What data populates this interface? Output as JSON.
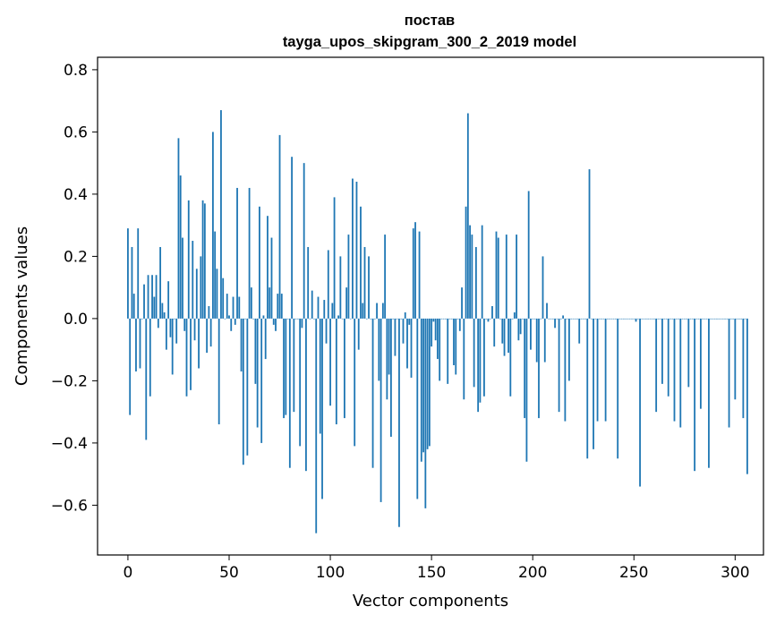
{
  "chart_data": {
    "type": "bar",
    "title_line1": "постав",
    "title_line2": "tayga_upos_skipgram_300_2_2019 model",
    "xlabel": "Vector components",
    "ylabel": "Components values",
    "xlim": [
      -15,
      314
    ],
    "ylim": [
      -0.76,
      0.84
    ],
    "xticks": [
      0,
      50,
      100,
      150,
      200,
      250,
      300
    ],
    "yticks": [
      -0.6,
      -0.4,
      -0.2,
      0.0,
      0.2,
      0.4,
      0.6,
      0.8
    ],
    "ytick_labels": [
      "−0.6",
      "−0.4",
      "−0.2",
      "0.0",
      "0.2",
      "0.4",
      "0.6",
      "0.8"
    ],
    "bar_color": "#1f77b4",
    "values": [
      0.29,
      -0.31,
      0.23,
      0.08,
      -0.17,
      0.29,
      -0.16,
      0.0,
      0.11,
      -0.39,
      0.14,
      -0.25,
      0.14,
      0.07,
      0.14,
      -0.03,
      0.23,
      0.05,
      0.02,
      -0.1,
      0.12,
      -0.06,
      -0.18,
      0.0,
      -0.08,
      0.58,
      0.46,
      0.26,
      -0.04,
      -0.25,
      0.38,
      -0.23,
      0.25,
      -0.07,
      0.16,
      -0.16,
      0.2,
      0.38,
      0.37,
      -0.11,
      0.04,
      -0.09,
      0.6,
      0.28,
      0.16,
      -0.34,
      0.67,
      0.13,
      0.0,
      0.08,
      0.01,
      -0.04,
      0.07,
      -0.02,
      0.42,
      0.07,
      -0.17,
      -0.47,
      0.0,
      -0.44,
      0.42,
      0.1,
      0.0,
      -0.21,
      -0.35,
      0.36,
      -0.4,
      0.01,
      -0.13,
      0.33,
      0.1,
      0.26,
      -0.02,
      -0.04,
      0.08,
      0.59,
      0.08,
      -0.32,
      -0.31,
      0.0,
      -0.48,
      0.52,
      -0.3,
      0.0,
      0.0,
      -0.41,
      -0.03,
      0.5,
      -0.49,
      0.23,
      0.0,
      0.09,
      0.0,
      -0.69,
      0.07,
      -0.37,
      -0.58,
      0.06,
      -0.08,
      0.22,
      -0.28,
      0.05,
      0.39,
      -0.34,
      0.01,
      0.2,
      0.0,
      -0.32,
      0.1,
      0.27,
      0.0,
      0.45,
      -0.41,
      0.44,
      -0.1,
      0.36,
      0.05,
      0.23,
      0.0,
      0.2,
      0.0,
      -0.48,
      0.0,
      0.05,
      -0.2,
      -0.59,
      0.05,
      0.27,
      -0.26,
      -0.18,
      -0.38,
      0.0,
      -0.12,
      0.0,
      -0.67,
      0.0,
      -0.08,
      0.02,
      -0.16,
      -0.02,
      -0.19,
      0.29,
      0.31,
      -0.58,
      0.28,
      -0.46,
      -0.43,
      -0.61,
      -0.42,
      -0.41,
      -0.09,
      -0.01,
      -0.07,
      -0.13,
      -0.2,
      0.0,
      0.0,
      0.0,
      -0.21,
      0.0,
      0.0,
      -0.15,
      -0.18,
      0.0,
      -0.04,
      0.1,
      -0.26,
      0.36,
      0.66,
      0.3,
      0.27,
      -0.22,
      0.23,
      -0.3,
      -0.27,
      0.3,
      -0.25,
      0.0,
      -0.01,
      0.0,
      0.04,
      -0.09,
      0.28,
      0.26,
      0.0,
      -0.08,
      -0.12,
      0.27,
      -0.11,
      -0.25,
      0.0,
      0.02,
      0.27,
      -0.07,
      -0.05,
      0.0,
      -0.32,
      -0.46,
      0.41,
      -0.1,
      0.0,
      0.0,
      -0.14,
      -0.32,
      0.0,
      0.2,
      -0.14,
      0.05,
      0.0,
      0.0,
      0.0,
      -0.03,
      0.0,
      -0.3,
      0.0,
      0.01,
      -0.33,
      0.0,
      -0.2,
      0.0,
      0.0,
      0.0,
      0.0,
      -0.08,
      0.0,
      0.0,
      0.0,
      -0.45,
      0.48,
      0.0,
      -0.42,
      0.0,
      -0.33,
      0.0,
      0.0,
      0.0,
      -0.33,
      0.0,
      0.0,
      0.0,
      0.0,
      0.0,
      -0.45,
      0.0,
      0.0,
      0.0,
      0.0,
      0.0,
      0.0,
      0.0,
      0.0,
      -0.01,
      0.0,
      -0.54,
      0.0,
      0.0,
      0.0,
      0.0,
      0.0,
      0.0,
      0.0,
      -0.3,
      0.0,
      0.0,
      -0.21,
      0.0,
      0.0,
      -0.25,
      0.0,
      0.0,
      -0.33,
      0.0,
      0.0,
      -0.35,
      0.0,
      0.0,
      0.0,
      -0.22,
      0.0,
      0.0,
      -0.49,
      0.0,
      0.0,
      -0.29,
      0.0,
      0.0,
      0.0,
      -0.48,
      0.0,
      0.0,
      0.0,
      0.0,
      0.0,
      0.0,
      0.0,
      0.0,
      0.0,
      -0.35,
      0.0,
      0.0,
      -0.26,
      0.0,
      0.0,
      0.0,
      -0.32,
      0.0,
      -0.5
    ]
  }
}
